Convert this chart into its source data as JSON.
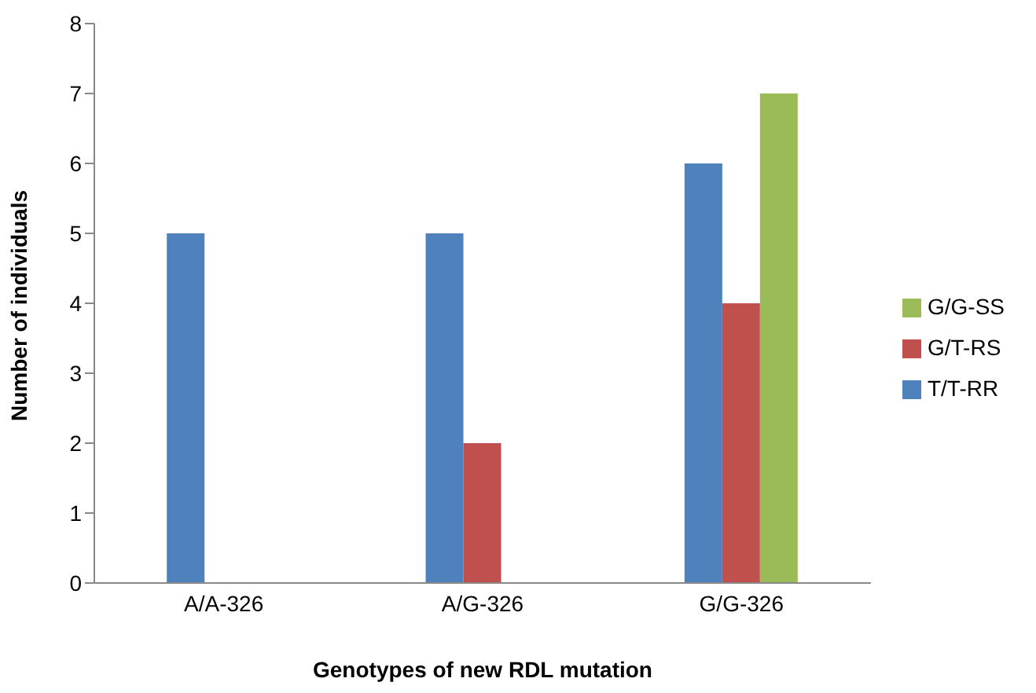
{
  "chart_data": {
    "type": "bar",
    "xlabel": "Genotypes of new RDL mutation",
    "ylabel": "Number of individuals",
    "categories": [
      "A/A-326",
      "A/G-326",
      "G/G-326"
    ],
    "series": [
      {
        "name": "T/T-RR",
        "color": "#4f81bd",
        "values": [
          5,
          5,
          6
        ]
      },
      {
        "name": "G/T-RS",
        "color": "#c0504d",
        "values": [
          0,
          2,
          4
        ]
      },
      {
        "name": "G/G-SS",
        "color": "#9bbb59",
        "values": [
          0,
          0,
          7
        ]
      }
    ],
    "ylim": [
      0,
      8
    ],
    "yticks": [
      0,
      1,
      2,
      3,
      4,
      5,
      6,
      7,
      8
    ],
    "grid": false,
    "legend": "right"
  }
}
